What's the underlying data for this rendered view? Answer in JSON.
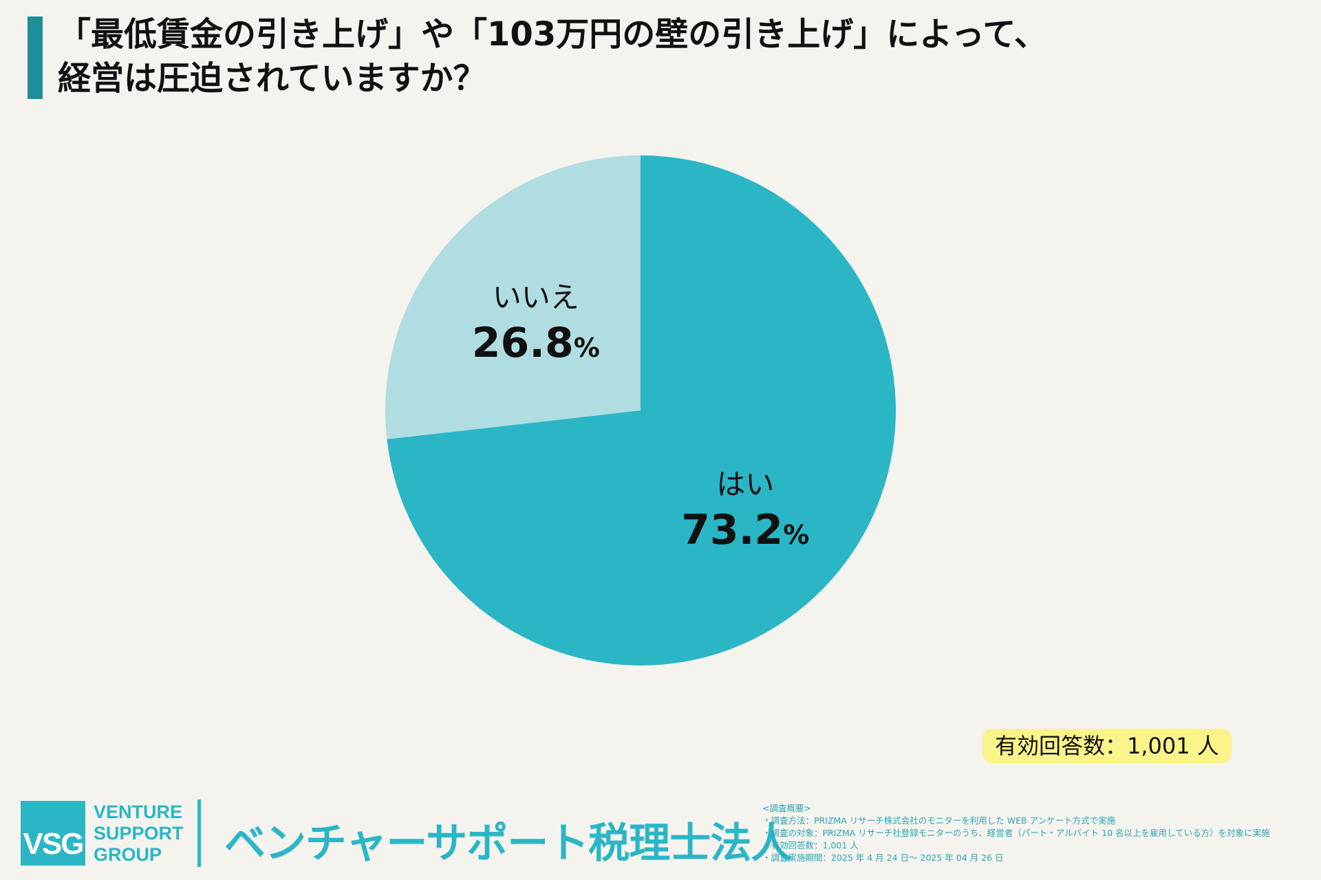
{
  "title": {
    "line1": "「最低賃金の引き上げ」や「103万円の壁の引き上げ」によって、",
    "line2": "経営は圧迫されていますか？"
  },
  "chart_data": {
    "type": "pie",
    "title": "「最低賃金の引き上げ」や「103万円の壁の引き上げ」によって、経営は圧迫されていますか？",
    "slices": [
      {
        "label": "はい",
        "value": 73.2,
        "display": "73.2",
        "color": "#2bb6c6"
      },
      {
        "label": "いいえ",
        "value": 26.8,
        "display": "26.8",
        "color": "#b0dde2"
      }
    ],
    "unit": "%",
    "start_angle": "12 o'clock",
    "direction": "clockwise"
  },
  "respondents": "有効回答数：1,001 人",
  "footer": {
    "logo": "VSG",
    "org_en": [
      "VENTURE",
      "SUPPORT",
      "GROUP"
    ],
    "org_jp": "ベンチャーサポート税理士法人",
    "notes": [
      "<調査概要>",
      "・調査方法：PRIZMA リサーチ株式会社のモニターを利用した WEB アンケート方式で実施",
      "・調査の対象：PRIZMA リサーチ社登録モニターのうち、経営者（パート・アルバイト 10 名以上を雇用している方）を対象に実施",
      "・有効回答数：1,001 人",
      "・調査実施期間：2025 年 4 月 24 日〜 2025 年 04 月 26 日"
    ]
  }
}
